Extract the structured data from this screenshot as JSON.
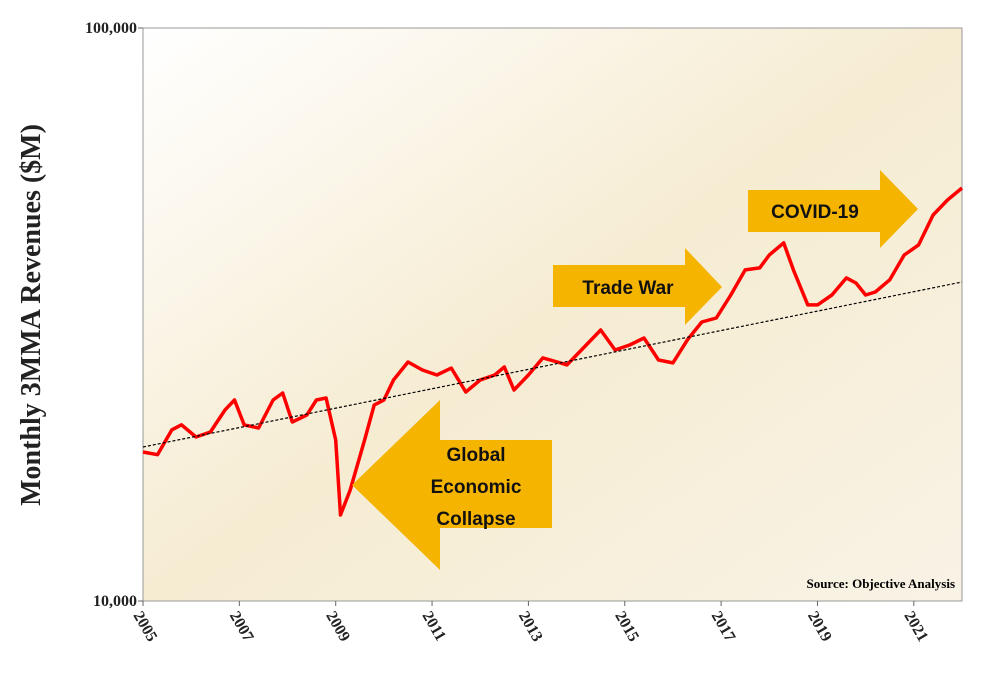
{
  "chart_data": {
    "type": "line",
    "y_label": "Monthly 3MMA Revenues ($M)",
    "source": "Source: Objective Analysis",
    "log_scale_y": true,
    "xlim": [
      2005,
      2022
    ],
    "xticks": [
      2005,
      2007,
      2009,
      2011,
      2013,
      2015,
      2017,
      2019,
      2021
    ],
    "ylim": [
      10000,
      100000
    ],
    "yticks": [
      {
        "value": 10000,
        "label": "10,000"
      },
      {
        "value": 100000,
        "label": "100,000"
      }
    ],
    "series": [
      {
        "color": "#ff0000",
        "style": "solid",
        "x": [
          2005.0,
          2005.3,
          2005.6,
          2005.8,
          2006.1,
          2006.4,
          2006.7,
          2006.9,
          2007.1,
          2007.4,
          2007.7,
          2007.9,
          2008.1,
          2008.4,
          2008.6,
          2008.8,
          2009.0,
          2009.1,
          2009.3,
          2009.6,
          2009.8,
          2010.0,
          2010.2,
          2010.5,
          2010.8,
          2011.1,
          2011.4,
          2011.7,
          2012.0,
          2012.3,
          2012.5,
          2012.7,
          2013.0,
          2013.3,
          2013.6,
          2013.8,
          2014.1,
          2014.5,
          2014.8,
          2015.1,
          2015.4,
          2015.7,
          2016.0,
          2016.3,
          2016.6,
          2016.9,
          2017.2,
          2017.5,
          2017.8,
          2018.0,
          2018.3,
          2018.5,
          2018.8,
          2019.0,
          2019.3,
          2019.6,
          2019.8,
          2020.0,
          2020.2,
          2020.5,
          2020.8,
          2021.1,
          2021.4,
          2021.7,
          2022.0
        ],
        "values": [
          18200,
          18000,
          19900,
          20300,
          19330,
          19720,
          21540,
          22430,
          20290,
          20040,
          22430,
          23070,
          20530,
          21110,
          22430,
          22610,
          19100,
          14130,
          15620,
          19100,
          21980,
          22430,
          24300,
          26130,
          25300,
          24800,
          25500,
          23160,
          24300,
          24800,
          25610,
          23350,
          24800,
          26560,
          26130,
          25820,
          27420,
          29710,
          27420,
          27980,
          28770,
          26340,
          26030,
          28550,
          30690,
          31180,
          34200,
          37830,
          38130,
          40170,
          42160,
          37830,
          32860,
          32860,
          34200,
          36630,
          35890,
          34200,
          34610,
          36340,
          40170,
          41820,
          47170,
          50100,
          52580
        ]
      },
      {
        "color": "#000000",
        "style": "dashed",
        "x": [
          2005,
          2022
        ],
        "values": [
          18570,
          36040
        ]
      }
    ],
    "annotations": [
      {
        "lines": [
          "Global",
          "Economic",
          "Collapse"
        ]
      },
      {
        "lines": [
          "Trade War"
        ]
      },
      {
        "lines": [
          "COVID-19"
        ]
      }
    ]
  }
}
